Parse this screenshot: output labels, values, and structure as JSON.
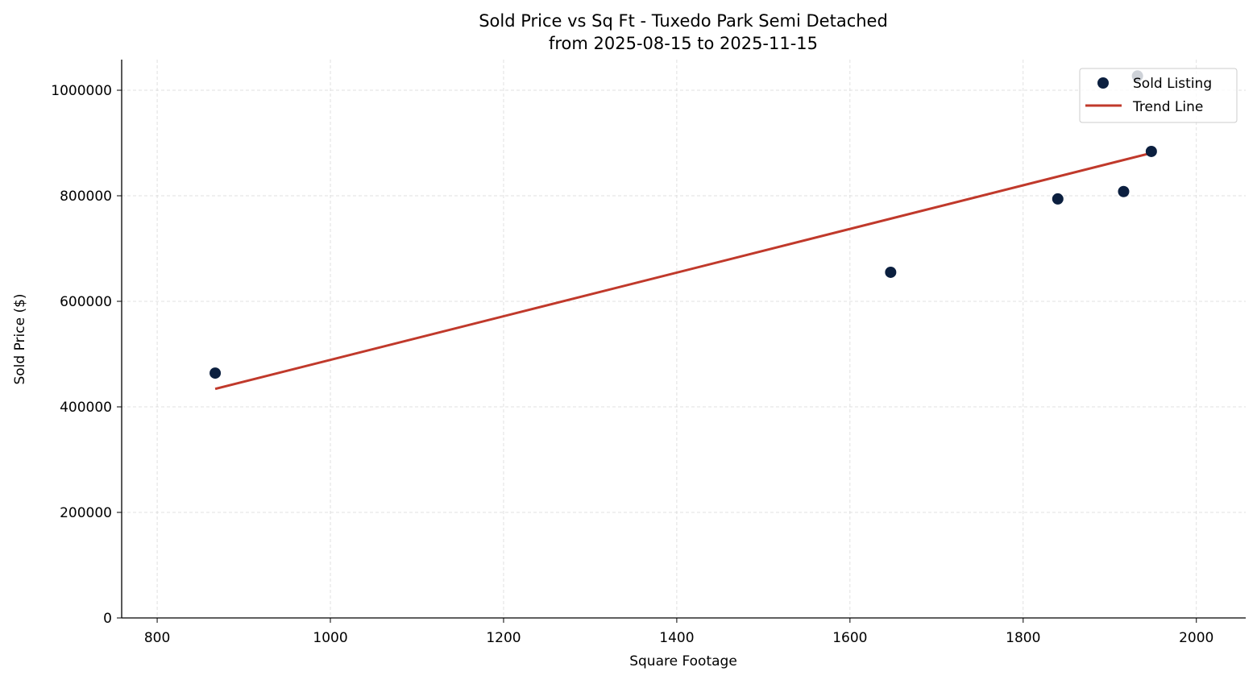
{
  "chart_data": {
    "type": "scatter",
    "title": "Sold Price vs Sq Ft - Tuxedo Park Semi Detached",
    "subtitle": "from 2025-08-15 to 2025-11-15",
    "xlabel": "Square Footage",
    "ylabel": "Sold Price ($)",
    "xlim": [
      759,
      2057
    ],
    "ylim": [
      0,
      1058000
    ],
    "xticks": [
      800,
      1000,
      1200,
      1400,
      1600,
      1800,
      2000
    ],
    "yticks": [
      0,
      200000,
      400000,
      600000,
      800000,
      1000000
    ],
    "grid": true,
    "legend_position": "top-right",
    "series": [
      {
        "name": "Sold Listing",
        "type": "scatter",
        "color": "#0b1f3f",
        "points": [
          {
            "x": 867,
            "y": 464000
          },
          {
            "x": 1647,
            "y": 655000
          },
          {
            "x": 1840,
            "y": 794000
          },
          {
            "x": 1916,
            "y": 808000
          },
          {
            "x": 1932,
            "y": 1027000
          },
          {
            "x": 1948,
            "y": 884000
          }
        ]
      },
      {
        "name": "Trend Line",
        "type": "line",
        "color": "#c0392b",
        "points": [
          {
            "x": 867,
            "y": 434000
          },
          {
            "x": 1948,
            "y": 881000
          }
        ]
      }
    ]
  }
}
